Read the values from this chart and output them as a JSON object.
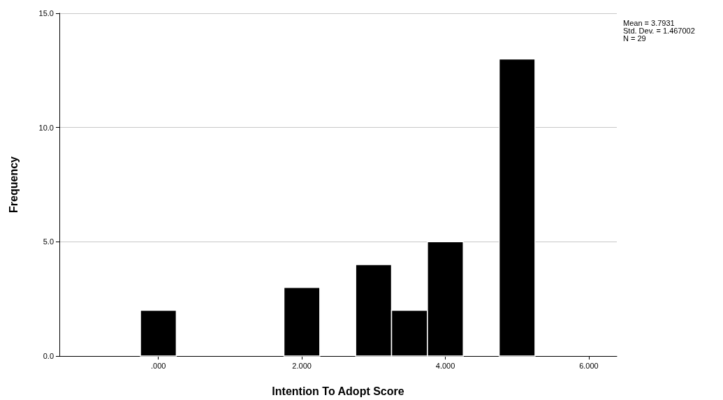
{
  "chart_data": {
    "type": "histogram",
    "xlabel": "Intention To Adopt Score",
    "ylabel": "Frequency",
    "bins": [
      -0.25,
      0.25,
      0.75,
      1.25,
      1.75,
      2.25,
      2.75,
      3.25,
      3.75,
      4.25,
      4.75,
      5.25
    ],
    "values": [
      2,
      0,
      0,
      0,
      3,
      0,
      4,
      2,
      5,
      0,
      13
    ],
    "color": "#000000",
    "xlim": [
      -1.38,
      6.39
    ],
    "xticks": [
      {
        "value": 0,
        "label": ".000"
      },
      {
        "value": 2,
        "label": "2.000"
      },
      {
        "value": 4,
        "label": "4.000"
      },
      {
        "value": 6,
        "label": "6.000"
      }
    ],
    "ylim": [
      0,
      15
    ],
    "yticks": [
      {
        "value": 0,
        "label": "0.0"
      },
      {
        "value": 5,
        "label": "5.0"
      },
      {
        "value": 10,
        "label": "10.0"
      },
      {
        "value": 15,
        "label": "15.0"
      }
    ],
    "grid": "y",
    "annotations": [
      "Mean = 3.7931",
      "Std. Dev. = 1.467002",
      "N = 29"
    ]
  }
}
